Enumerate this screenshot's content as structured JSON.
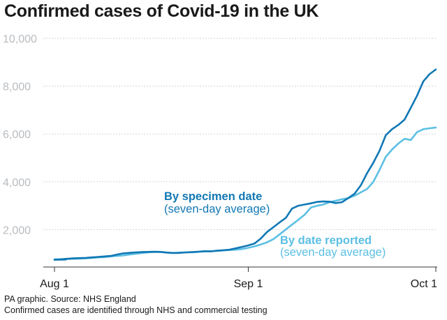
{
  "header": {
    "title": "Confirmed cases of Covid-19 in the UK"
  },
  "footer": {
    "source": "PA graphic. Source: NHS England",
    "note": "Confirmed cases are identified through NHS and commercial testing"
  },
  "colors": {
    "specimen": "#1178b4",
    "reported": "#5bbfe3",
    "grid": "#cfd3d6",
    "axis": "#333333"
  },
  "chart_data": {
    "type": "line",
    "title": "Confirmed cases of Covid-19 in the UK",
    "xlabel": "",
    "ylabel": "",
    "x_ticks": [
      {
        "label": "Aug 1",
        "day": 0
      },
      {
        "label": "Sep 1",
        "day": 31
      },
      {
        "label": "Oct 1",
        "day": 61
      }
    ],
    "y_ticks": [
      {
        "label": "2,000",
        "value": 2000
      },
      {
        "label": "4,000",
        "value": 4000
      },
      {
        "label": "6,000",
        "value": 6000
      },
      {
        "label": "8,000",
        "value": 8000
      },
      {
        "label": "10,000",
        "value": 10000
      }
    ],
    "ylim": [
      0,
      10000
    ],
    "grid": true,
    "series": [
      {
        "key": "specimen",
        "name": "By specimen date",
        "sub": "(seven-day average)",
        "points": [
          [
            -2,
            750
          ],
          [
            0,
            740
          ],
          [
            1,
            760
          ],
          [
            2,
            780
          ],
          [
            3,
            800
          ],
          [
            4,
            810
          ],
          [
            5,
            820
          ],
          [
            6,
            840
          ],
          [
            7,
            860
          ],
          [
            8,
            880
          ],
          [
            9,
            900
          ],
          [
            10,
            960
          ],
          [
            11,
            1010
          ],
          [
            12,
            1030
          ],
          [
            13,
            1050
          ],
          [
            14,
            1060
          ],
          [
            15,
            1070
          ],
          [
            16,
            1080
          ],
          [
            17,
            1070
          ],
          [
            18,
            1040
          ],
          [
            19,
            1020
          ],
          [
            20,
            1030
          ],
          [
            21,
            1050
          ],
          [
            22,
            1060
          ],
          [
            23,
            1080
          ],
          [
            24,
            1100
          ],
          [
            25,
            1090
          ],
          [
            26,
            1120
          ],
          [
            27,
            1140
          ],
          [
            28,
            1160
          ],
          [
            29,
            1220
          ],
          [
            30,
            1280
          ],
          [
            31,
            1340
          ],
          [
            32,
            1420
          ],
          [
            33,
            1630
          ],
          [
            34,
            1900
          ],
          [
            35,
            2100
          ],
          [
            36,
            2300
          ],
          [
            37,
            2490
          ],
          [
            38,
            2880
          ],
          [
            39,
            3000
          ],
          [
            40,
            3050
          ],
          [
            41,
            3100
          ],
          [
            42,
            3160
          ],
          [
            43,
            3180
          ],
          [
            44,
            3170
          ],
          [
            45,
            3110
          ],
          [
            46,
            3150
          ],
          [
            47,
            3320
          ],
          [
            48,
            3500
          ],
          [
            49,
            3850
          ],
          [
            50,
            4360
          ],
          [
            51,
            4800
          ],
          [
            52,
            5300
          ],
          [
            53,
            5950
          ],
          [
            54,
            6200
          ],
          [
            55,
            6380
          ],
          [
            56,
            6600
          ],
          [
            57,
            7100
          ],
          [
            58,
            7600
          ],
          [
            59,
            8200
          ],
          [
            60,
            8500
          ],
          [
            61,
            8700
          ]
        ]
      },
      {
        "key": "reported",
        "name": "By date reported",
        "sub": "(seven-day average)",
        "points": [
          [
            -2,
            760
          ],
          [
            0,
            760
          ],
          [
            1,
            760
          ],
          [
            2,
            770
          ],
          [
            3,
            780
          ],
          [
            4,
            790
          ],
          [
            5,
            800
          ],
          [
            6,
            820
          ],
          [
            7,
            840
          ],
          [
            8,
            850
          ],
          [
            9,
            880
          ],
          [
            10,
            900
          ],
          [
            11,
            920
          ],
          [
            12,
            960
          ],
          [
            13,
            990
          ],
          [
            14,
            1020
          ],
          [
            15,
            1050
          ],
          [
            16,
            1060
          ],
          [
            17,
            1060
          ],
          [
            18,
            1040
          ],
          [
            19,
            1030
          ],
          [
            20,
            1040
          ],
          [
            21,
            1050
          ],
          [
            22,
            1050
          ],
          [
            23,
            1070
          ],
          [
            24,
            1090
          ],
          [
            25,
            1100
          ],
          [
            26,
            1110
          ],
          [
            27,
            1130
          ],
          [
            28,
            1150
          ],
          [
            29,
            1160
          ],
          [
            30,
            1190
          ],
          [
            31,
            1240
          ],
          [
            32,
            1300
          ],
          [
            33,
            1380
          ],
          [
            34,
            1470
          ],
          [
            35,
            1600
          ],
          [
            36,
            1800
          ],
          [
            37,
            2010
          ],
          [
            38,
            2210
          ],
          [
            39,
            2410
          ],
          [
            40,
            2620
          ],
          [
            41,
            2920
          ],
          [
            42,
            3000
          ],
          [
            43,
            3050
          ],
          [
            44,
            3150
          ],
          [
            45,
            3210
          ],
          [
            46,
            3270
          ],
          [
            47,
            3320
          ],
          [
            48,
            3420
          ],
          [
            49,
            3560
          ],
          [
            50,
            3700
          ],
          [
            51,
            4000
          ],
          [
            52,
            4500
          ],
          [
            53,
            5050
          ],
          [
            54,
            5350
          ],
          [
            55,
            5600
          ],
          [
            56,
            5800
          ],
          [
            57,
            5750
          ],
          [
            58,
            6080
          ],
          [
            59,
            6200
          ],
          [
            60,
            6240
          ],
          [
            61,
            6270
          ]
        ]
      }
    ]
  }
}
